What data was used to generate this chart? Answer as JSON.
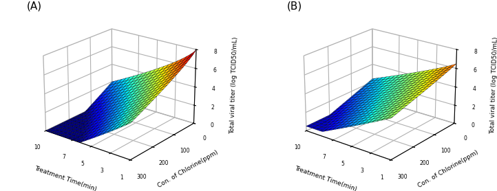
{
  "panel_A_label": "(A)",
  "panel_B_label": "(B)",
  "xlabel": "Treatment Time(min)",
  "ylabel": "Con. of Chlorine(ppm)",
  "zlabel": "Total viral titer (log TCID50/mL)",
  "time_ticks": [
    1,
    3,
    5,
    7,
    10
  ],
  "chlorine_ticks": [
    0,
    100,
    200,
    300
  ],
  "z_ticks": [
    0,
    2,
    4,
    6,
    8
  ],
  "zlim": [
    0,
    8
  ],
  "cmap_A": "jet",
  "cmap_B": "jet",
  "elev": 22,
  "azim_A": -52,
  "azim_B": -52,
  "figsize": [
    7.22,
    2.78
  ],
  "dpi": 100,
  "background_color": "#ffffff",
  "tick_fontsize": 5.5,
  "label_fontsize": 6.5,
  "panel_label_fontsize": 11
}
